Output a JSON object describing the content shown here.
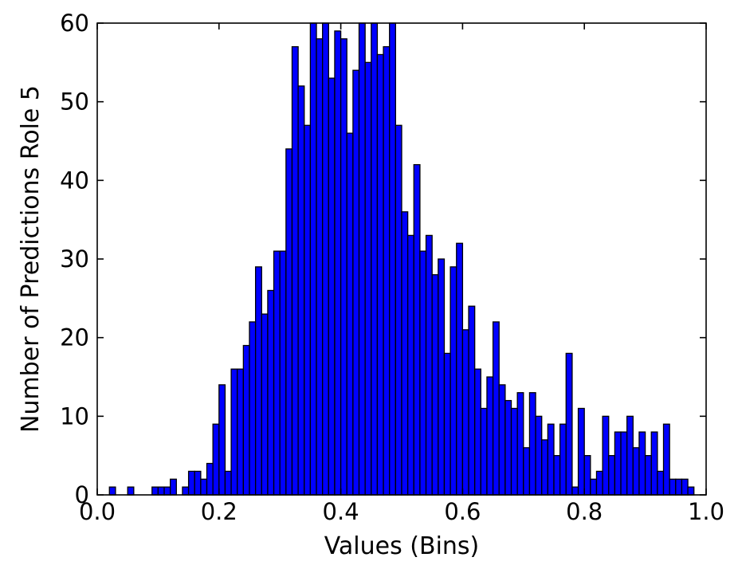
{
  "chart_data": {
    "type": "bar",
    "subtype": "histogram",
    "title": "",
    "xlabel": "Values (Bins)",
    "ylabel": "Number of Predictions Role 5",
    "xlim": [
      0.0,
      1.0
    ],
    "ylim": [
      0,
      60
    ],
    "xticks": [
      "0.0",
      "0.2",
      "0.4",
      "0.6",
      "0.8",
      "1.0"
    ],
    "yticks": [
      "0",
      "10",
      "20",
      "30",
      "40",
      "50",
      "60"
    ],
    "grid": false,
    "legend": "none",
    "bar_color": "#0000ff",
    "edge_color": "#000000",
    "bin_width": 0.01,
    "bins": [
      {
        "x": 0.02,
        "count": 1
      },
      {
        "x": 0.03,
        "count": 0
      },
      {
        "x": 0.04,
        "count": 0
      },
      {
        "x": 0.05,
        "count": 1
      },
      {
        "x": 0.06,
        "count": 0
      },
      {
        "x": 0.07,
        "count": 0
      },
      {
        "x": 0.08,
        "count": 0
      },
      {
        "x": 0.09,
        "count": 1
      },
      {
        "x": 0.1,
        "count": 1
      },
      {
        "x": 0.11,
        "count": 1
      },
      {
        "x": 0.12,
        "count": 2
      },
      {
        "x": 0.13,
        "count": 0
      },
      {
        "x": 0.14,
        "count": 1
      },
      {
        "x": 0.15,
        "count": 3
      },
      {
        "x": 0.16,
        "count": 3
      },
      {
        "x": 0.17,
        "count": 2
      },
      {
        "x": 0.18,
        "count": 4
      },
      {
        "x": 0.19,
        "count": 9
      },
      {
        "x": 0.2,
        "count": 14
      },
      {
        "x": 0.21,
        "count": 3
      },
      {
        "x": 0.22,
        "count": 16
      },
      {
        "x": 0.23,
        "count": 16
      },
      {
        "x": 0.24,
        "count": 19
      },
      {
        "x": 0.25,
        "count": 22
      },
      {
        "x": 0.26,
        "count": 29
      },
      {
        "x": 0.27,
        "count": 23
      },
      {
        "x": 0.28,
        "count": 26
      },
      {
        "x": 0.29,
        "count": 31
      },
      {
        "x": 0.3,
        "count": 31
      },
      {
        "x": 0.31,
        "count": 44
      },
      {
        "x": 0.32,
        "count": 57
      },
      {
        "x": 0.33,
        "count": 52
      },
      {
        "x": 0.34,
        "count": 47
      },
      {
        "x": 0.35,
        "count": 60
      },
      {
        "x": 0.36,
        "count": 58
      },
      {
        "x": 0.37,
        "count": 60
      },
      {
        "x": 0.38,
        "count": 53
      },
      {
        "x": 0.39,
        "count": 59
      },
      {
        "x": 0.4,
        "count": 58
      },
      {
        "x": 0.41,
        "count": 46
      },
      {
        "x": 0.42,
        "count": 54
      },
      {
        "x": 0.43,
        "count": 60
      },
      {
        "x": 0.44,
        "count": 55
      },
      {
        "x": 0.45,
        "count": 60
      },
      {
        "x": 0.46,
        "count": 56
      },
      {
        "x": 0.47,
        "count": 57
      },
      {
        "x": 0.48,
        "count": 60
      },
      {
        "x": 0.49,
        "count": 47
      },
      {
        "x": 0.5,
        "count": 36
      },
      {
        "x": 0.51,
        "count": 33
      },
      {
        "x": 0.52,
        "count": 42
      },
      {
        "x": 0.53,
        "count": 31
      },
      {
        "x": 0.54,
        "count": 33
      },
      {
        "x": 0.55,
        "count": 28
      },
      {
        "x": 0.56,
        "count": 30
      },
      {
        "x": 0.57,
        "count": 18
      },
      {
        "x": 0.58,
        "count": 29
      },
      {
        "x": 0.59,
        "count": 32
      },
      {
        "x": 0.6,
        "count": 21
      },
      {
        "x": 0.61,
        "count": 24
      },
      {
        "x": 0.62,
        "count": 16
      },
      {
        "x": 0.63,
        "count": 11
      },
      {
        "x": 0.64,
        "count": 15
      },
      {
        "x": 0.65,
        "count": 22
      },
      {
        "x": 0.66,
        "count": 14
      },
      {
        "x": 0.67,
        "count": 12
      },
      {
        "x": 0.68,
        "count": 11
      },
      {
        "x": 0.69,
        "count": 13
      },
      {
        "x": 0.7,
        "count": 6
      },
      {
        "x": 0.71,
        "count": 13
      },
      {
        "x": 0.72,
        "count": 10
      },
      {
        "x": 0.73,
        "count": 7
      },
      {
        "x": 0.74,
        "count": 9
      },
      {
        "x": 0.75,
        "count": 5
      },
      {
        "x": 0.76,
        "count": 9
      },
      {
        "x": 0.77,
        "count": 18
      },
      {
        "x": 0.78,
        "count": 1
      },
      {
        "x": 0.79,
        "count": 11
      },
      {
        "x": 0.8,
        "count": 5
      },
      {
        "x": 0.81,
        "count": 2
      },
      {
        "x": 0.82,
        "count": 3
      },
      {
        "x": 0.83,
        "count": 10
      },
      {
        "x": 0.84,
        "count": 5
      },
      {
        "x": 0.85,
        "count": 8
      },
      {
        "x": 0.86,
        "count": 8
      },
      {
        "x": 0.87,
        "count": 10
      },
      {
        "x": 0.88,
        "count": 6
      },
      {
        "x": 0.89,
        "count": 8
      },
      {
        "x": 0.9,
        "count": 5
      },
      {
        "x": 0.91,
        "count": 8
      },
      {
        "x": 0.92,
        "count": 3
      },
      {
        "x": 0.93,
        "count": 9
      },
      {
        "x": 0.94,
        "count": 2
      },
      {
        "x": 0.95,
        "count": 2
      },
      {
        "x": 0.96,
        "count": 2
      },
      {
        "x": 0.97,
        "count": 1
      }
    ]
  }
}
